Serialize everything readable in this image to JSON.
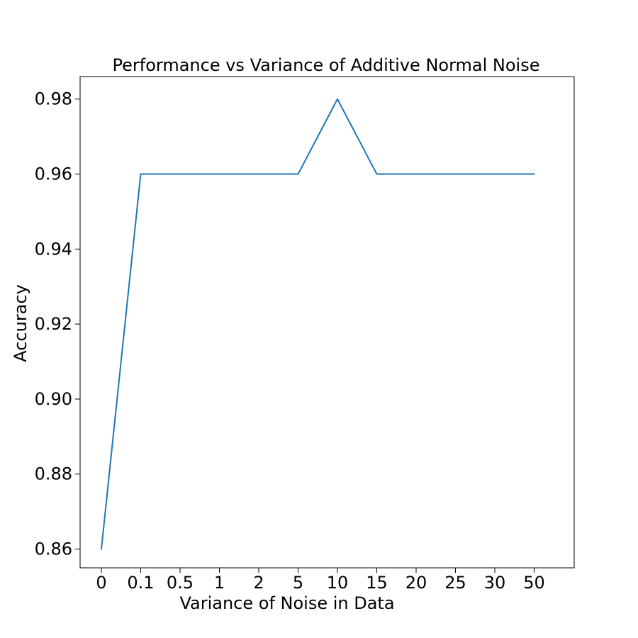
{
  "chart_data": {
    "type": "line",
    "title": "Performance vs Variance of Additive Normal Noise",
    "xlabel": "Variance of Noise in Data",
    "ylabel": "Accuracy",
    "categories": [
      "0",
      "0.1",
      "0.5",
      "1",
      "2",
      "5",
      "10",
      "15",
      "20",
      "25",
      "30",
      "50"
    ],
    "series": [
      {
        "values": [
          0.86,
          0.96,
          0.96,
          0.96,
          0.96,
          0.96,
          0.98,
          0.96,
          0.96,
          0.96,
          0.96,
          0.96
        ],
        "color": "#1f77b4"
      }
    ],
    "yticks": [
      "0.86",
      "0.88",
      "0.90",
      "0.92",
      "0.94",
      "0.96",
      "0.98"
    ],
    "ylim": [
      0.855,
      0.986
    ],
    "grid": false,
    "legend": "none"
  }
}
